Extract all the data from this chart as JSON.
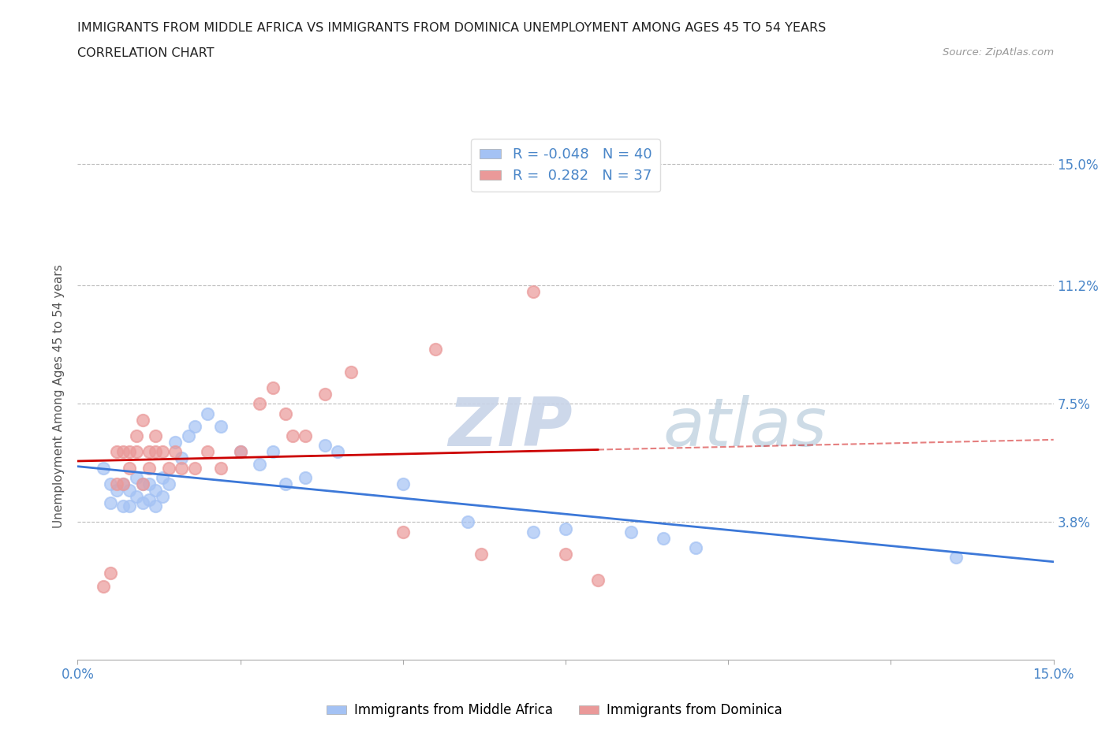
{
  "title_line1": "IMMIGRANTS FROM MIDDLE AFRICA VS IMMIGRANTS FROM DOMINICA UNEMPLOYMENT AMONG AGES 45 TO 54 YEARS",
  "title_line2": "CORRELATION CHART",
  "source_text": "Source: ZipAtlas.com",
  "ylabel": "Unemployment Among Ages 45 to 54 years",
  "xlim": [
    0.0,
    0.15
  ],
  "ylim": [
    -0.005,
    0.16
  ],
  "yticks": [
    0.038,
    0.075,
    0.112,
    0.15
  ],
  "ytick_labels": [
    "3.8%",
    "7.5%",
    "11.2%",
    "15.0%"
  ],
  "xticks": [
    0.0,
    0.025,
    0.05,
    0.075,
    0.1,
    0.125,
    0.15
  ],
  "xtick_labels": [
    "0.0%",
    "",
    "",
    "",
    "",
    "",
    "15.0%"
  ],
  "blue_R": "-0.048",
  "blue_N": "40",
  "pink_R": "0.282",
  "pink_N": "37",
  "blue_color": "#a4c2f4",
  "pink_color": "#ea9999",
  "blue_line_color": "#3c78d8",
  "pink_line_color": "#cc0000",
  "grid_color": "#bbbbbb",
  "watermark_text": "ZIPatlas",
  "watermark_color": "#d4dff0",
  "legend_label_blue": "Immigrants from Middle Africa",
  "legend_label_pink": "Immigrants from Dominica",
  "text_color": "#4a86c8",
  "blue_scatter_x": [
    0.004,
    0.005,
    0.005,
    0.006,
    0.007,
    0.007,
    0.008,
    0.008,
    0.009,
    0.009,
    0.01,
    0.01,
    0.011,
    0.011,
    0.012,
    0.012,
    0.013,
    0.013,
    0.014,
    0.015,
    0.016,
    0.017,
    0.018,
    0.02,
    0.022,
    0.025,
    0.028,
    0.03,
    0.032,
    0.035,
    0.038,
    0.04,
    0.05,
    0.06,
    0.07,
    0.075,
    0.085,
    0.09,
    0.095,
    0.135
  ],
  "blue_scatter_y": [
    0.055,
    0.05,
    0.044,
    0.048,
    0.05,
    0.043,
    0.048,
    0.043,
    0.052,
    0.046,
    0.05,
    0.044,
    0.05,
    0.045,
    0.048,
    0.043,
    0.052,
    0.046,
    0.05,
    0.063,
    0.058,
    0.065,
    0.068,
    0.072,
    0.068,
    0.06,
    0.056,
    0.06,
    0.05,
    0.052,
    0.062,
    0.06,
    0.05,
    0.038,
    0.035,
    0.036,
    0.035,
    0.033,
    0.03,
    0.027
  ],
  "pink_scatter_x": [
    0.004,
    0.005,
    0.006,
    0.006,
    0.007,
    0.007,
    0.008,
    0.008,
    0.009,
    0.009,
    0.01,
    0.01,
    0.011,
    0.011,
    0.012,
    0.012,
    0.013,
    0.014,
    0.015,
    0.016,
    0.018,
    0.02,
    0.022,
    0.025,
    0.028,
    0.03,
    0.032,
    0.033,
    0.035,
    0.038,
    0.042,
    0.05,
    0.055,
    0.062,
    0.07,
    0.075,
    0.08
  ],
  "pink_scatter_y": [
    0.018,
    0.022,
    0.06,
    0.05,
    0.06,
    0.05,
    0.06,
    0.055,
    0.065,
    0.06,
    0.07,
    0.05,
    0.06,
    0.055,
    0.065,
    0.06,
    0.06,
    0.055,
    0.06,
    0.055,
    0.055,
    0.06,
    0.055,
    0.06,
    0.075,
    0.08,
    0.072,
    0.065,
    0.065,
    0.078,
    0.085,
    0.035,
    0.092,
    0.028,
    0.11,
    0.028,
    0.02
  ],
  "trend_dashed_color": "#cc9999"
}
